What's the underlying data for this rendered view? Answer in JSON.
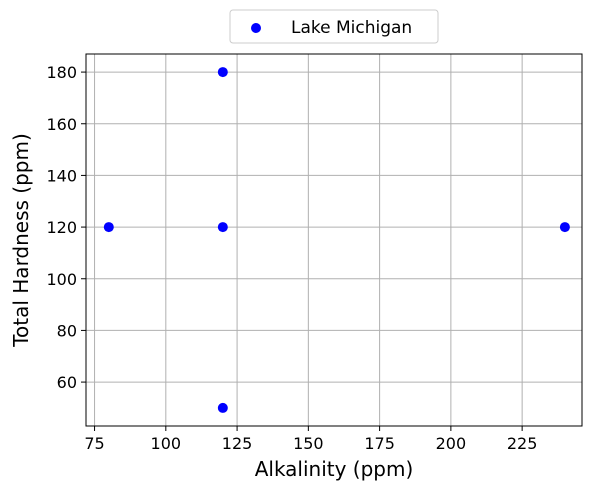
{
  "chart_data": {
    "type": "scatter",
    "xlabel": "Alkalinity (ppm)",
    "ylabel": "Total Hardness (ppm)",
    "xlim": [
      72,
      246
    ],
    "ylim": [
      43,
      187
    ],
    "xticks": [
      75,
      100,
      125,
      150,
      175,
      200,
      225
    ],
    "yticks": [
      60,
      80,
      100,
      120,
      140,
      160,
      180
    ],
    "grid": true,
    "legend_position": "top-center",
    "series": [
      {
        "name": "Lake Michigan",
        "color": "#0000ff",
        "points": [
          {
            "x": 120,
            "y": 180
          },
          {
            "x": 80,
            "y": 120
          },
          {
            "x": 120,
            "y": 120
          },
          {
            "x": 240,
            "y": 120
          },
          {
            "x": 120,
            "y": 50
          }
        ]
      }
    ]
  }
}
